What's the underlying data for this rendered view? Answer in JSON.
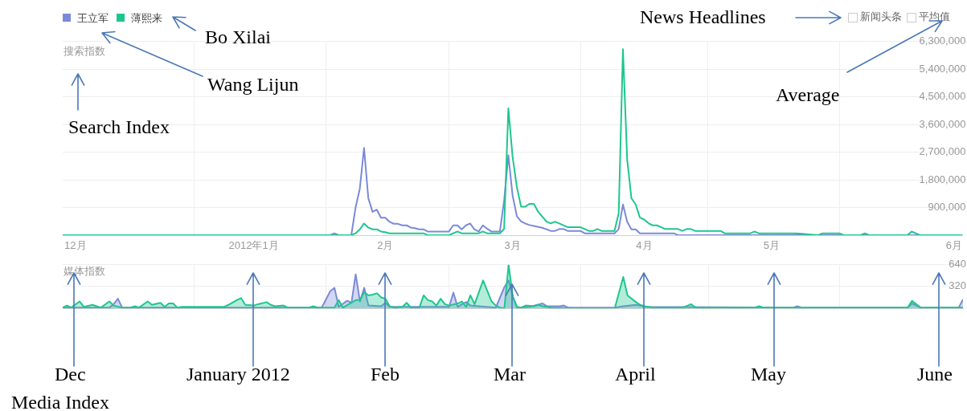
{
  "chart_data": [
    {
      "type": "line",
      "ylabel": "搜索指数",
      "legend": "top left",
      "grid": true,
      "xlim": [
        "2011-12-01",
        "2012-06-30"
      ],
      "xticks": [
        {
          "value": "2011-12-04",
          "label": "12月"
        },
        {
          "value": "2012-01-01",
          "label": null
        },
        {
          "value": "2012-01-15",
          "label": "2012年1月"
        },
        {
          "value": "2012-02-01",
          "label": null
        },
        {
          "value": "2012-02-15",
          "label": "2月"
        },
        {
          "value": "2012-03-01",
          "label": null
        },
        {
          "value": "2012-03-16",
          "label": "3月"
        },
        {
          "value": "2012-04-01",
          "label": null
        },
        {
          "value": "2012-04-16",
          "label": "4月"
        },
        {
          "value": "2012-05-01",
          "label": null
        },
        {
          "value": "2012-05-16",
          "label": "5月"
        },
        {
          "value": "2012-06-01",
          "label": null
        },
        {
          "value": "2012-06-28",
          "label": "6月"
        }
      ],
      "ylim": [
        0,
        6300000
      ],
      "yticks": [
        {
          "value": 0,
          "label": null
        },
        {
          "value": 900000,
          "label": "900,000"
        },
        {
          "value": 1800000,
          "label": "1,800,000"
        },
        {
          "value": 2700000,
          "label": "2,700,000"
        },
        {
          "value": 3600000,
          "label": "3,600,000"
        },
        {
          "value": 4500000,
          "label": "4,500,000"
        },
        {
          "value": 5400000,
          "label": "5,400,000"
        },
        {
          "value": 6300000,
          "label": "6,300,000"
        }
      ],
      "annotations": [
        "新闻头条",
        "平均值",
        "Bo Xilai",
        "Wang Lijun",
        "Search Index",
        "News Headlines",
        "Average"
      ],
      "series": [
        {
          "name": "王立军",
          "color": "#7b8ad8",
          "x": [
            "2011-12-01",
            "2012-01-27",
            "2012-02-02",
            "2012-02-03",
            "2012-02-04",
            "2012-02-07",
            "2012-02-08",
            "2012-02-09",
            "2012-02-10",
            "2012-02-11",
            "2012-02-12",
            "2012-02-13",
            "2012-02-14",
            "2012-02-15",
            "2012-02-16",
            "2012-02-17",
            "2012-02-18",
            "2012-02-19",
            "2012-02-20",
            "2012-02-21",
            "2012-02-22",
            "2012-02-23",
            "2012-02-24",
            "2012-02-25",
            "2012-03-01",
            "2012-03-02",
            "2012-03-03",
            "2012-03-04",
            "2012-03-05",
            "2012-03-06",
            "2012-03-07",
            "2012-03-08",
            "2012-03-09",
            "2012-03-10",
            "2012-03-11",
            "2012-03-13",
            "2012-03-14",
            "2012-03-15",
            "2012-03-16",
            "2012-03-17",
            "2012-03-18",
            "2012-03-19",
            "2012-03-20",
            "2012-03-21",
            "2012-03-23",
            "2012-03-25",
            "2012-03-26",
            "2012-03-27",
            "2012-03-28",
            "2012-03-29",
            "2012-04-01",
            "2012-04-02",
            "2012-04-09",
            "2012-04-10",
            "2012-04-11",
            "2012-04-12",
            "2012-04-13",
            "2012-04-14",
            "2012-04-15",
            "2012-04-23",
            "2012-04-24",
            "2012-05-21",
            "2012-05-22",
            "2012-05-23",
            "2012-06-30"
          ],
          "values": [
            0,
            0,
            0,
            60000,
            0,
            0,
            900000,
            1510000,
            2840000,
            1210000,
            760000,
            830000,
            570000,
            570000,
            440000,
            370000,
            370000,
            320000,
            320000,
            250000,
            230000,
            190000,
            190000,
            120000,
            120000,
            320000,
            320000,
            190000,
            320000,
            380000,
            190000,
            120000,
            320000,
            210000,
            120000,
            120000,
            1120000,
            2600000,
            1290000,
            620000,
            450000,
            380000,
            330000,
            300000,
            240000,
            140000,
            140000,
            200000,
            200000,
            140000,
            140000,
            60000,
            60000,
            200000,
            1000000,
            440000,
            190000,
            190000,
            60000,
            60000,
            0,
            0,
            20000,
            0,
            0
          ]
        },
        {
          "name": "薄熙来",
          "color": "#1ec68f",
          "x": [
            "2011-12-01",
            "2012-02-07",
            "2012-02-08",
            "2012-02-09",
            "2012-02-10",
            "2012-02-11",
            "2012-02-12",
            "2012-02-13",
            "2012-02-14",
            "2012-02-15",
            "2012-02-16",
            "2012-02-24",
            "2012-02-25",
            "2012-03-01",
            "2012-03-03",
            "2012-03-04",
            "2012-03-08",
            "2012-03-09",
            "2012-03-10",
            "2012-03-13",
            "2012-03-14",
            "2012-03-15",
            "2012-03-16",
            "2012-03-17",
            "2012-03-18",
            "2012-03-19",
            "2012-03-20",
            "2012-03-21",
            "2012-03-22",
            "2012-03-24",
            "2012-03-25",
            "2012-03-26",
            "2012-03-27",
            "2012-03-29",
            "2012-04-01",
            "2012-04-03",
            "2012-04-04",
            "2012-04-05",
            "2012-04-06",
            "2012-04-09",
            "2012-04-10",
            "2012-04-11",
            "2012-04-12",
            "2012-04-13",
            "2012-04-14",
            "2012-04-15",
            "2012-04-16",
            "2012-04-17",
            "2012-04-18",
            "2012-04-19",
            "2012-04-21",
            "2012-04-24",
            "2012-04-25",
            "2012-04-26",
            "2012-04-27",
            "2012-04-28",
            "2012-05-04",
            "2012-05-05",
            "2012-05-11",
            "2012-05-12",
            "2012-05-13",
            "2012-05-22",
            "2012-05-27",
            "2012-05-28",
            "2012-06-01",
            "2012-06-02",
            "2012-06-06",
            "2012-06-07",
            "2012-06-08",
            "2012-06-17",
            "2012-06-18",
            "2012-06-20",
            "2012-06-30"
          ],
          "values": [
            0,
            0,
            60000,
            190000,
            380000,
            250000,
            190000,
            190000,
            120000,
            100000,
            60000,
            60000,
            0,
            0,
            120000,
            60000,
            60000,
            120000,
            60000,
            60000,
            210000,
            4130000,
            2550000,
            1570000,
            930000,
            930000,
            1020000,
            1020000,
            770000,
            440000,
            380000,
            440000,
            380000,
            260000,
            260000,
            140000,
            140000,
            200000,
            140000,
            140000,
            710000,
            6050000,
            2460000,
            1200000,
            1000000,
            570000,
            510000,
            390000,
            320000,
            320000,
            200000,
            200000,
            140000,
            200000,
            200000,
            140000,
            140000,
            60000,
            60000,
            120000,
            60000,
            60000,
            0,
            60000,
            60000,
            0,
            0,
            60000,
            0,
            0,
            120000,
            0,
            0
          ]
        }
      ]
    },
    {
      "type": "area",
      "ylabel": "媒体指数",
      "grid": true,
      "tick_labels": "y",
      "xlim": [
        "2011-12-01",
        "2012-06-30"
      ],
      "xticks": [
        {
          "value": "2012-01-01",
          "label": null
        },
        {
          "value": "2012-02-01",
          "label": null
        },
        {
          "value": "2012-03-01",
          "label": null
        },
        {
          "value": "2012-04-01",
          "label": null
        },
        {
          "value": "2012-05-01",
          "label": null
        },
        {
          "value": "2012-06-01",
          "label": null
        }
      ],
      "ylim": [
        0,
        640
      ],
      "yticks": [
        {
          "value": 0,
          "label": null
        },
        320,
        640
      ],
      "annotations": [
        "Dec",
        "January 2012",
        "Feb",
        "Mar",
        "April",
        "May",
        "June",
        "Media Index"
      ],
      "series": [
        {
          "color": "#7b8ad8",
          "x": [
            "2011-12-01",
            "2011-12-12",
            "2011-12-13",
            "2011-12-14",
            "2011-12-15",
            "2012-01-31",
            "2012-02-02",
            "2012-02-03",
            "2012-02-04",
            "2012-02-06",
            "2012-02-07",
            "2012-02-08",
            "2012-02-09",
            "2012-02-10",
            "2012-02-11",
            "2012-02-14",
            "2012-02-15",
            "2012-02-16",
            "2012-03-01",
            "2012-03-02",
            "2012-03-03",
            "2012-03-04",
            "2012-03-05",
            "2012-03-06",
            "2012-03-08",
            "2012-03-12",
            "2012-03-14",
            "2012-03-15",
            "2012-03-16",
            "2012-03-17",
            "2012-03-20",
            "2012-03-23",
            "2012-03-24",
            "2012-03-27",
            "2012-03-28",
            "2012-03-29",
            "2012-04-09",
            "2012-04-11",
            "2012-04-14",
            "2012-04-15",
            "2012-04-16",
            "2012-05-21",
            "2012-05-22",
            "2012-05-23",
            "2012-06-17",
            "2012-06-18",
            "2012-06-20",
            "2012-06-29",
            "2012-06-30"
          ],
          "values": [
            10,
            10,
            60,
            140,
            10,
            10,
            250,
            300,
            20,
            110,
            80,
            500,
            100,
            300,
            40,
            30,
            80,
            20,
            20,
            230,
            20,
            60,
            90,
            40,
            30,
            10,
            310,
            410,
            170,
            10,
            20,
            70,
            30,
            30,
            40,
            10,
            10,
            30,
            50,
            40,
            20,
            10,
            30,
            10,
            10,
            70,
            10,
            10,
            130
          ]
        },
        {
          "color": "#1ec68f",
          "x": [
            "2011-12-01",
            "2011-12-02",
            "2011-12-03",
            "2011-12-05",
            "2011-12-06",
            "2011-12-08",
            "2011-12-10",
            "2011-12-12",
            "2011-12-13",
            "2011-12-15",
            "2011-12-17",
            "2011-12-18",
            "2011-12-19",
            "2011-12-21",
            "2011-12-22",
            "2011-12-24",
            "2011-12-25",
            "2011-12-26",
            "2011-12-27",
            "2011-12-28",
            "2011-12-29",
            "2012-01-08",
            "2012-01-09",
            "2012-01-11",
            "2012-01-12",
            "2012-01-13",
            "2012-01-15",
            "2012-01-16",
            "2012-01-18",
            "2012-01-19",
            "2012-01-20",
            "2012-01-22",
            "2012-01-23",
            "2012-01-28",
            "2012-01-29",
            "2012-01-30",
            "2012-02-03",
            "2012-02-04",
            "2012-02-05",
            "2012-02-08",
            "2012-02-09",
            "2012-02-10",
            "2012-02-11",
            "2012-02-12",
            "2012-02-13",
            "2012-02-14",
            "2012-02-15",
            "2012-02-16",
            "2012-02-17",
            "2012-02-19",
            "2012-02-20",
            "2012-02-21",
            "2012-02-23",
            "2012-02-24",
            "2012-02-25",
            "2012-02-26",
            "2012-02-27",
            "2012-02-28",
            "2012-02-29",
            "2012-03-01",
            "2012-03-03",
            "2012-03-04",
            "2012-03-05",
            "2012-03-06",
            "2012-03-07",
            "2012-03-09",
            "2012-03-11",
            "2012-03-12",
            "2012-03-13",
            "2012-03-14",
            "2012-03-15",
            "2012-03-16",
            "2012-03-17",
            "2012-03-18",
            "2012-03-19",
            "2012-03-21",
            "2012-03-22",
            "2012-03-23",
            "2012-03-25",
            "2012-03-31",
            "2012-04-09",
            "2012-04-11",
            "2012-04-12",
            "2012-04-14",
            "2012-04-15",
            "2012-04-16",
            "2012-04-18",
            "2012-04-25",
            "2012-04-27",
            "2012-04-28",
            "2012-05-12",
            "2012-05-13",
            "2012-05-14",
            "2012-06-17",
            "2012-06-18",
            "2012-06-20",
            "2012-06-30"
          ],
          "values": [
            10,
            40,
            10,
            100,
            20,
            50,
            10,
            100,
            40,
            10,
            10,
            30,
            10,
            100,
            50,
            80,
            20,
            70,
            70,
            10,
            20,
            20,
            50,
            120,
            150,
            50,
            40,
            60,
            90,
            50,
            30,
            40,
            10,
            10,
            30,
            10,
            10,
            120,
            10,
            120,
            120,
            240,
            190,
            200,
            220,
            160,
            140,
            30,
            10,
            20,
            80,
            10,
            10,
            190,
            120,
            100,
            40,
            140,
            60,
            40,
            70,
            100,
            20,
            190,
            60,
            410,
            100,
            40,
            10,
            0,
            640,
            170,
            20,
            10,
            40,
            30,
            50,
            30,
            10,
            0,
            0,
            460,
            190,
            90,
            50,
            30,
            10,
            10,
            60,
            10,
            10,
            30,
            10,
            10,
            110,
            10,
            10
          ]
        }
      ]
    }
  ]
}
